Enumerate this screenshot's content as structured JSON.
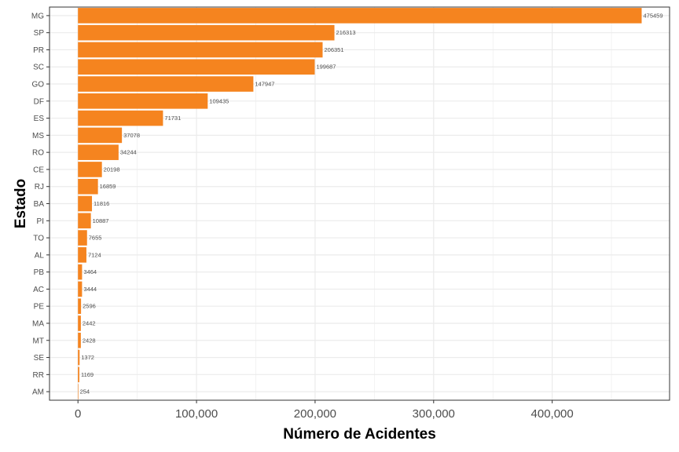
{
  "chart_data": {
    "type": "bar",
    "orientation": "horizontal",
    "categories": [
      "MG",
      "SP",
      "PR",
      "SC",
      "GO",
      "DF",
      "ES",
      "MS",
      "RO",
      "CE",
      "RJ",
      "BA",
      "PI",
      "TO",
      "AL",
      "PB",
      "AC",
      "PE",
      "MA",
      "MT",
      "SE",
      "RR",
      "AM"
    ],
    "values": [
      475459,
      216313,
      206351,
      199687,
      147947,
      109435,
      71731,
      37078,
      34244,
      20198,
      16859,
      11816,
      10887,
      7655,
      7124,
      3464,
      3444,
      2596,
      2442,
      2428,
      1372,
      1169,
      254
    ],
    "xlabel": "Número de Acidentes",
    "ylabel": "Estado",
    "xlim": [
      -24000,
      499000
    ],
    "x_ticks": [
      0,
      100000,
      200000,
      300000,
      400000
    ],
    "x_tick_labels": [
      "0",
      "100,000",
      "200,000",
      "300,000",
      "400,000"
    ],
    "grid": true,
    "bar_color": "#F5841F",
    "grid_color": "#EBEBEB",
    "border_color": "#333333"
  }
}
